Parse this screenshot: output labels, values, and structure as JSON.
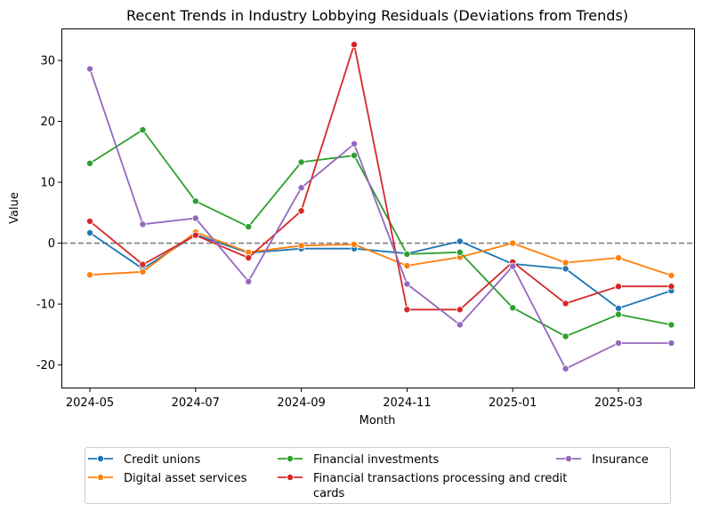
{
  "chart_data": {
    "type": "line",
    "title": "Recent Trends in Industry Lobbying Residuals (Deviations from Trends)",
    "xlabel": "Month",
    "ylabel": "Value",
    "x": [
      "2024-05",
      "2024-06",
      "2024-07",
      "2024-08",
      "2024-09",
      "2024-10",
      "2024-11",
      "2024-12",
      "2025-01",
      "2025-02",
      "2025-03",
      "2025-04"
    ],
    "x_tick_labels": [
      "2024-05",
      "2024-07",
      "2024-09",
      "2024-11",
      "2025-01",
      "2025-03"
    ],
    "x_tick_positions": [
      0,
      2,
      4,
      6,
      8,
      10
    ],
    "y_ticks": [
      -20,
      -10,
      0,
      10,
      20,
      30
    ],
    "ylim": [
      -23.7,
      35.1
    ],
    "reference_line": {
      "y": 0,
      "style": "dashed",
      "color": "#808080"
    },
    "grid": false,
    "legend_position": "bottom-center",
    "series": [
      {
        "name": "Credit unions",
        "color": "#1f77b4",
        "values": [
          1.7,
          -4.2,
          1.4,
          -1.6,
          -0.9,
          -0.9,
          -1.7,
          0.3,
          -3.4,
          -4.2,
          -10.7,
          -7.8
        ]
      },
      {
        "name": "Digital asset services",
        "color": "#ff7f0e",
        "values": [
          -5.2,
          -4.7,
          1.8,
          -1.5,
          -0.4,
          -0.2,
          -3.7,
          -2.3,
          0.0,
          -3.2,
          -2.4,
          -5.3
        ]
      },
      {
        "name": "Financial investments",
        "color": "#2ca02c",
        "values": [
          13.1,
          18.6,
          6.9,
          2.7,
          13.3,
          14.4,
          -1.8,
          -1.5,
          -10.6,
          -15.3,
          -11.7,
          -13.4
        ]
      },
      {
        "name": "Financial transactions processing and credit cards",
        "color": "#d62728",
        "values": [
          3.6,
          -3.5,
          1.3,
          -2.4,
          5.3,
          32.6,
          -10.9,
          -10.9,
          -3.1,
          -9.9,
          -7.1,
          -7.1
        ]
      },
      {
        "name": "Insurance",
        "color": "#9467bd",
        "values": [
          28.6,
          3.1,
          4.1,
          -6.3,
          9.1,
          16.3,
          -6.7,
          -13.4,
          -3.8,
          -20.6,
          -16.4,
          -16.4
        ]
      }
    ]
  }
}
